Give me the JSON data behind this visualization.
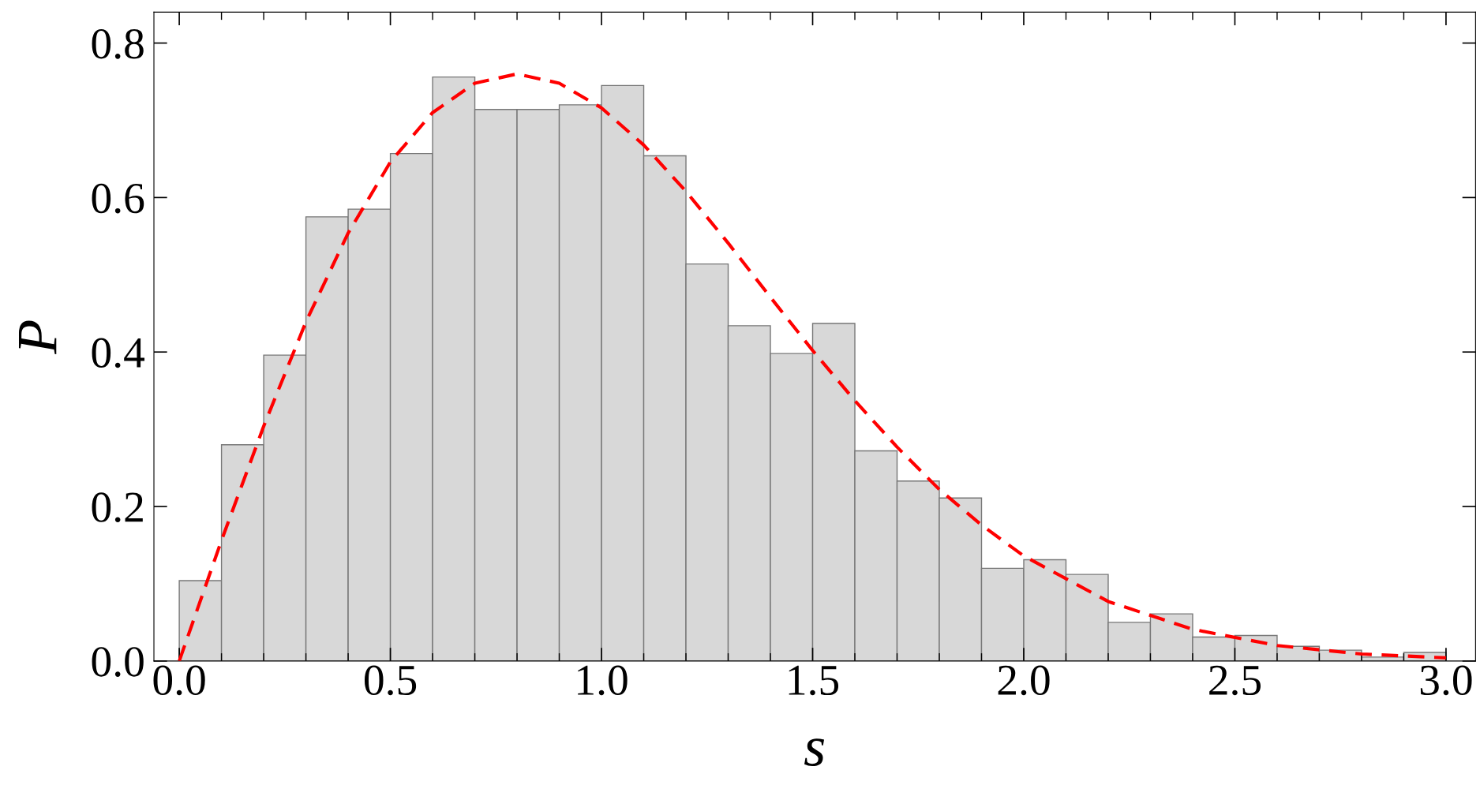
{
  "chart_data": {
    "type": "histogram",
    "xlabel": "s",
    "ylabel": "P",
    "bins": [
      0.0,
      0.1,
      0.2,
      0.3,
      0.4,
      0.5,
      0.6,
      0.7,
      0.8,
      0.9,
      1.0,
      1.1,
      1.2,
      1.3,
      1.4,
      1.5,
      1.6,
      1.7,
      1.8,
      1.9,
      2.0,
      2.1,
      2.2,
      2.3,
      2.4,
      2.5,
      2.6,
      2.7,
      2.8,
      2.9,
      3.0
    ],
    "values": [
      0.104,
      0.28,
      0.396,
      0.575,
      0.585,
      0.657,
      0.756,
      0.714,
      0.714,
      0.72,
      0.745,
      0.654,
      0.514,
      0.434,
      0.398,
      0.437,
      0.272,
      0.233,
      0.211,
      0.12,
      0.131,
      0.112,
      0.05,
      0.061,
      0.031,
      0.033,
      0.019,
      0.014,
      0.005,
      0.011
    ],
    "color": "#d8d8d8",
    "series": [
      {
        "type": "line",
        "color": "#ff0000",
        "line_style": "dashed",
        "x": [
          0,
          0.1,
          0.2,
          0.3,
          0.4,
          0.5,
          0.6,
          0.7,
          0.8,
          0.9,
          1.0,
          1.1,
          1.2,
          1.3,
          1.4,
          1.5,
          1.6,
          1.7,
          1.8,
          1.9,
          2.0,
          2.2,
          2.4,
          2.6,
          2.8,
          3.0
        ],
        "values": [
          0,
          0.156,
          0.304,
          0.439,
          0.554,
          0.646,
          0.71,
          0.748,
          0.76,
          0.748,
          0.716,
          0.668,
          0.608,
          0.541,
          0.471,
          0.402,
          0.337,
          0.277,
          0.222,
          0.176,
          0.136,
          0.077,
          0.041,
          0.02,
          0.009,
          0.004
        ]
      }
    ],
    "xlim": [
      -0.06,
      3.07
    ],
    "ylim": [
      0,
      0.84
    ],
    "xticks": [
      {
        "value": 0.0,
        "label": "0.0"
      },
      {
        "value": 0.5,
        "label": "0.5"
      },
      {
        "value": 1.0,
        "label": "1.0"
      },
      {
        "value": 1.5,
        "label": "1.5"
      },
      {
        "value": 2.0,
        "label": "2.0"
      },
      {
        "value": 2.5,
        "label": "2.5"
      },
      {
        "value": 3.0,
        "label": "3.0"
      }
    ],
    "yticks": [
      {
        "value": 0.0,
        "label": "0.0"
      },
      {
        "value": 0.2,
        "label": "0.2"
      },
      {
        "value": 0.4,
        "label": "0.4"
      },
      {
        "value": 0.6,
        "label": "0.6"
      },
      {
        "value": 0.8,
        "label": "0.8"
      }
    ],
    "grid": false,
    "legend": false
  }
}
